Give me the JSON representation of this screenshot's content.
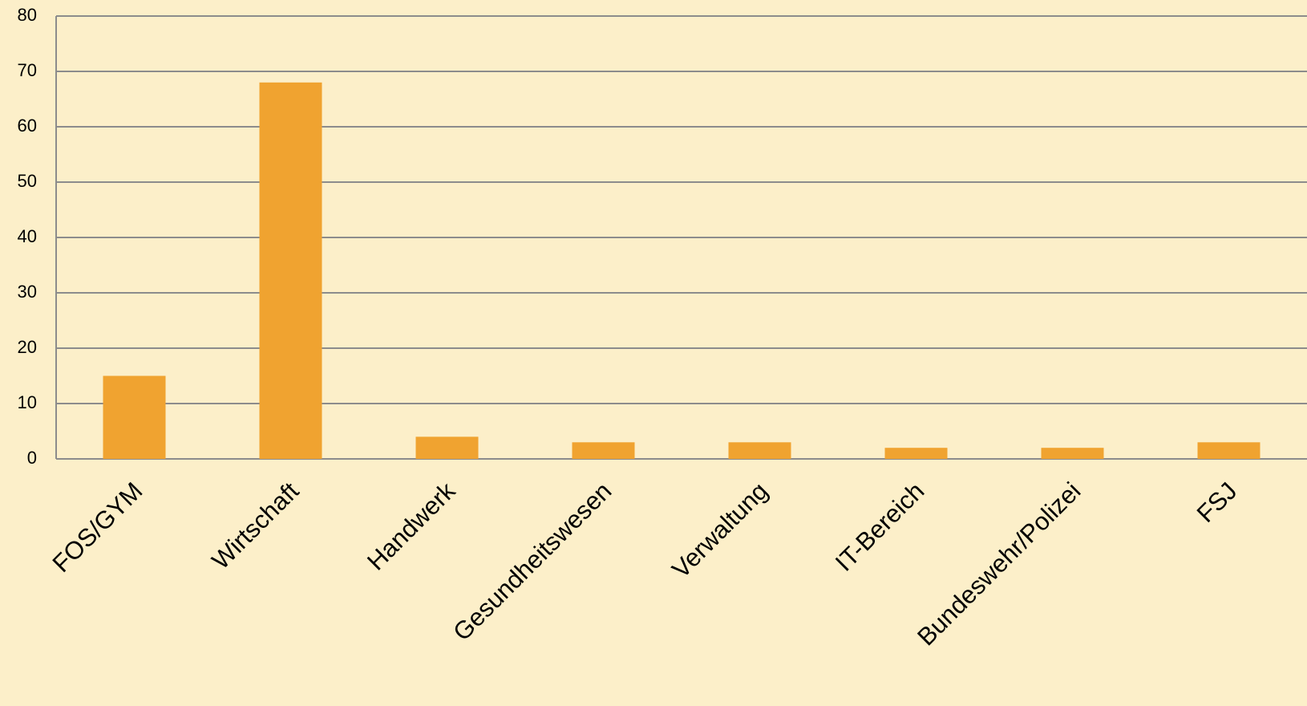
{
  "chart_data": {
    "type": "bar",
    "categories": [
      "FOS/GYM",
      "Wirtschaft",
      "Handwerk",
      "Gesundheitswesen",
      "Verwaltung",
      "IT-Bereich",
      "Bundeswehr/Polizei",
      "FSJ"
    ],
    "values": [
      15,
      68,
      4,
      3,
      3,
      2,
      2,
      3
    ],
    "color": "#f0a330",
    "ylim": [
      0,
      80
    ],
    "yticks": [
      0,
      10,
      20,
      30,
      40,
      50,
      60,
      70,
      80
    ],
    "grid": true
  }
}
